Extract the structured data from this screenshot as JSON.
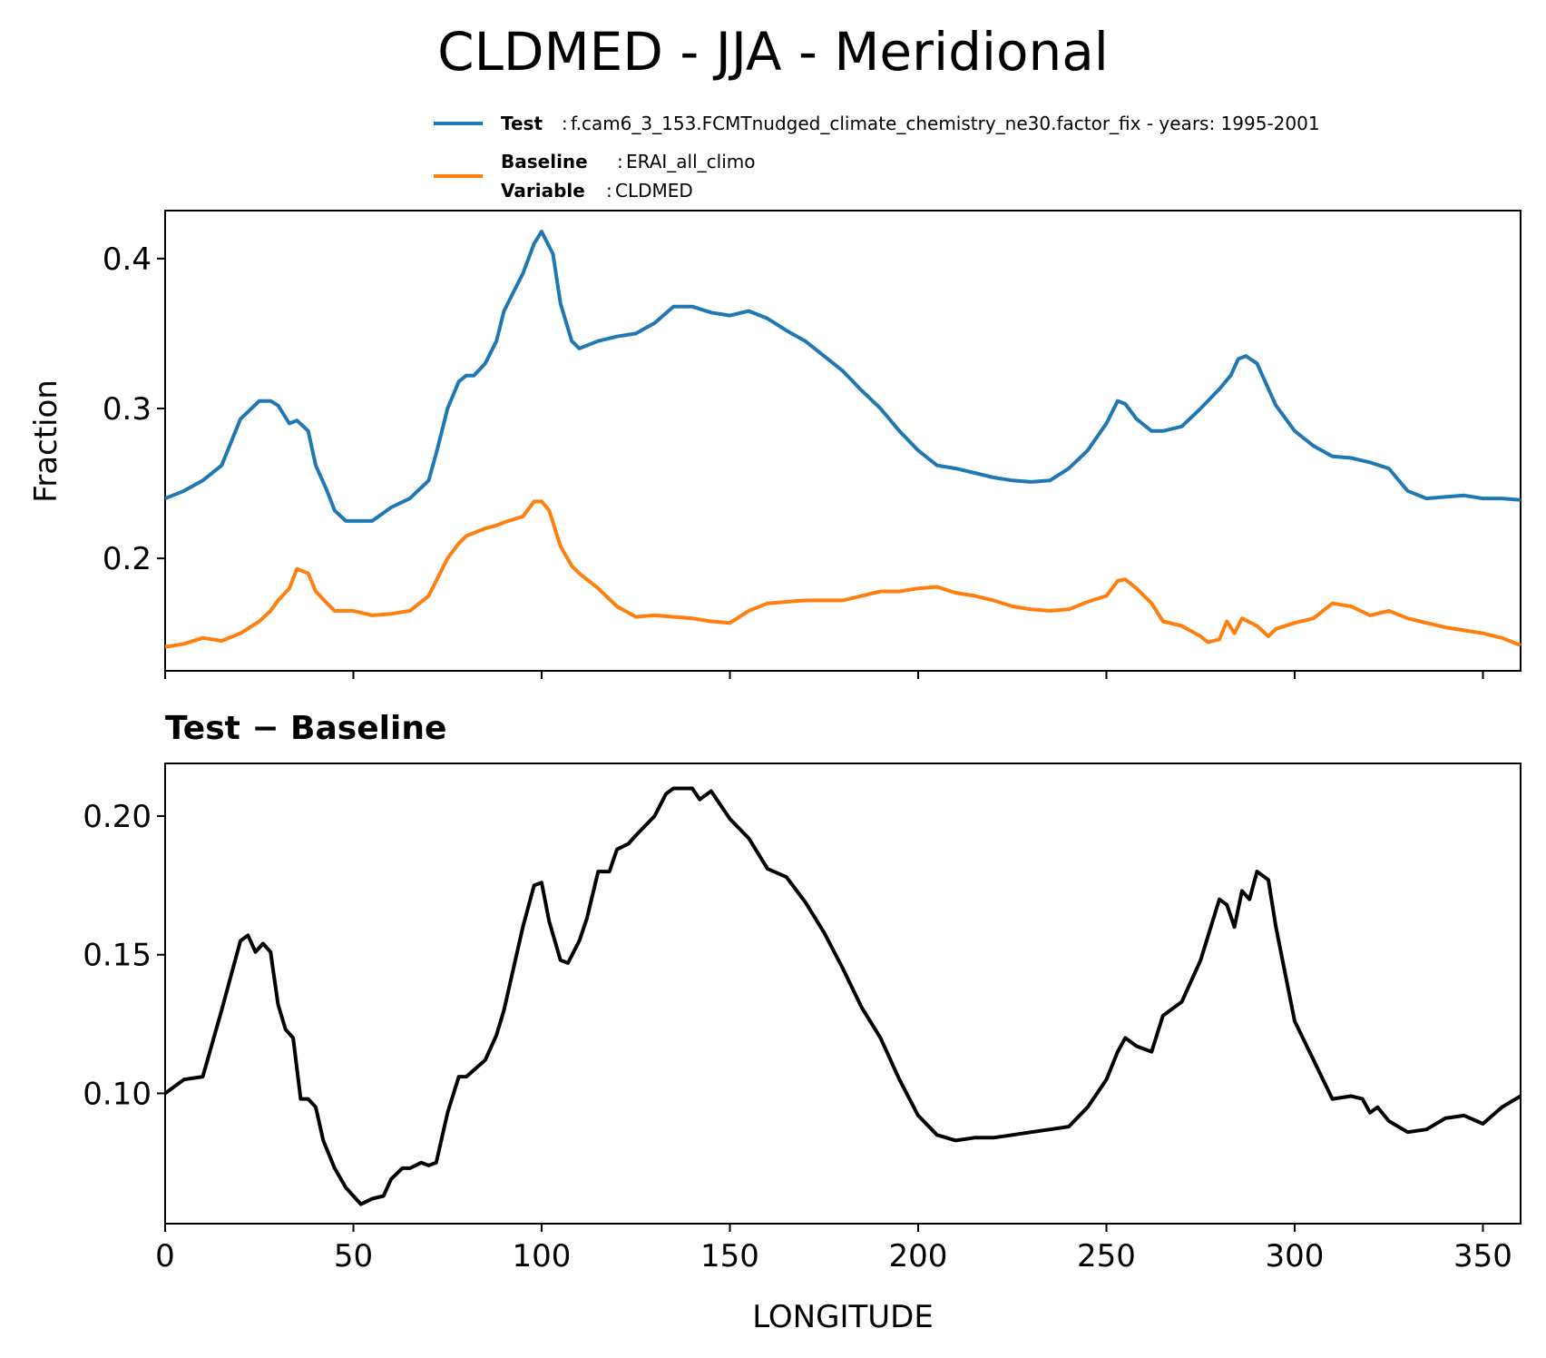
{
  "chart_data": [
    {
      "type": "line",
      "panel": "top",
      "title": "CLDMED - JJA - Meridional",
      "xlabel": "",
      "ylabel": "Fraction",
      "xlim": [
        0,
        360
      ],
      "ylim": [
        0.125,
        0.432
      ],
      "yticks": [
        0.2,
        0.3,
        0.4
      ],
      "ytick_labels": [
        "0.2",
        "0.3",
        "0.4"
      ],
      "xticks": [
        0,
        50,
        100,
        150,
        200,
        250,
        300,
        350
      ],
      "legend": {
        "placement": "top-right",
        "entries": [
          {
            "key": "Test",
            "text": "f.cam6_3_153.FCMTnudged_climate_chemistry_ne30.factor_fix - years: 1995-2001",
            "color": "#1f77b4"
          },
          {
            "key": "Baseline",
            "text": "ERAI_all_climo",
            "color": "#ff7f0e"
          },
          {
            "key": "Variable",
            "text": "CLDMED",
            "color": ""
          }
        ]
      },
      "series": [
        {
          "name": "Test",
          "color": "#1f77b4",
          "x": [
            0,
            5,
            10,
            15,
            20,
            25,
            28,
            30,
            33,
            35,
            38,
            40,
            43,
            45,
            48,
            50,
            55,
            60,
            65,
            70,
            72,
            75,
            78,
            80,
            82,
            85,
            88,
            90,
            92,
            95,
            98,
            100,
            103,
            105,
            108,
            110,
            115,
            120,
            125,
            130,
            135,
            140,
            145,
            150,
            155,
            160,
            165,
            170,
            175,
            180,
            185,
            190,
            195,
            200,
            205,
            210,
            215,
            220,
            225,
            230,
            235,
            240,
            245,
            250,
            253,
            255,
            258,
            262,
            265,
            270,
            275,
            280,
            283,
            285,
            287,
            290,
            295,
            300,
            305,
            310,
            315,
            320,
            325,
            330,
            335,
            340,
            345,
            350,
            355,
            360
          ],
          "values": [
            0.24,
            0.245,
            0.252,
            0.262,
            0.293,
            0.305,
            0.305,
            0.302,
            0.29,
            0.292,
            0.285,
            0.262,
            0.245,
            0.232,
            0.225,
            0.225,
            0.225,
            0.234,
            0.24,
            0.252,
            0.27,
            0.3,
            0.318,
            0.322,
            0.322,
            0.33,
            0.345,
            0.365,
            0.375,
            0.39,
            0.41,
            0.418,
            0.403,
            0.37,
            0.345,
            0.34,
            0.345,
            0.348,
            0.35,
            0.357,
            0.368,
            0.368,
            0.364,
            0.362,
            0.365,
            0.36,
            0.352,
            0.345,
            0.335,
            0.325,
            0.312,
            0.3,
            0.285,
            0.272,
            0.262,
            0.26,
            0.257,
            0.254,
            0.252,
            0.251,
            0.252,
            0.26,
            0.272,
            0.29,
            0.305,
            0.303,
            0.293,
            0.285,
            0.285,
            0.288,
            0.3,
            0.313,
            0.322,
            0.333,
            0.335,
            0.33,
            0.302,
            0.285,
            0.275,
            0.268,
            0.267,
            0.264,
            0.26,
            0.245,
            0.24,
            0.241,
            0.242,
            0.24,
            0.24,
            0.239
          ]
        },
        {
          "name": "Baseline",
          "color": "#ff7f0e",
          "x": [
            0,
            5,
            10,
            15,
            20,
            25,
            28,
            30,
            33,
            35,
            38,
            40,
            43,
            45,
            48,
            50,
            55,
            60,
            65,
            70,
            72,
            75,
            78,
            80,
            82,
            85,
            88,
            90,
            95,
            98,
            100,
            102,
            105,
            108,
            110,
            115,
            120,
            125,
            130,
            135,
            140,
            145,
            150,
            155,
            160,
            165,
            170,
            175,
            180,
            185,
            190,
            195,
            200,
            205,
            210,
            215,
            220,
            225,
            230,
            235,
            240,
            245,
            250,
            253,
            255,
            258,
            262,
            265,
            270,
            275,
            277,
            280,
            282,
            284,
            286,
            290,
            293,
            295,
            300,
            305,
            310,
            315,
            320,
            325,
            330,
            335,
            340,
            345,
            350,
            355,
            360
          ],
          "values": [
            0.141,
            0.143,
            0.147,
            0.145,
            0.15,
            0.158,
            0.165,
            0.172,
            0.18,
            0.193,
            0.19,
            0.178,
            0.17,
            0.165,
            0.165,
            0.165,
            0.162,
            0.163,
            0.165,
            0.175,
            0.185,
            0.2,
            0.21,
            0.215,
            0.217,
            0.22,
            0.222,
            0.224,
            0.228,
            0.238,
            0.238,
            0.232,
            0.208,
            0.195,
            0.19,
            0.18,
            0.168,
            0.161,
            0.162,
            0.161,
            0.16,
            0.158,
            0.157,
            0.165,
            0.17,
            0.171,
            0.172,
            0.172,
            0.172,
            0.175,
            0.178,
            0.178,
            0.18,
            0.181,
            0.177,
            0.175,
            0.172,
            0.168,
            0.166,
            0.165,
            0.166,
            0.171,
            0.175,
            0.185,
            0.186,
            0.18,
            0.17,
            0.158,
            0.155,
            0.148,
            0.144,
            0.146,
            0.158,
            0.15,
            0.16,
            0.155,
            0.148,
            0.153,
            0.157,
            0.16,
            0.17,
            0.168,
            0.162,
            0.165,
            0.16,
            0.157,
            0.154,
            0.152,
            0.15,
            0.147,
            0.142
          ]
        }
      ]
    },
    {
      "type": "line",
      "panel": "bottom",
      "title": "Test − Baseline",
      "xlabel": "LONGITUDE",
      "ylabel": "",
      "xlim": [
        0,
        360
      ],
      "ylim": [
        0.053,
        0.219
      ],
      "yticks": [
        0.1,
        0.15,
        0.2
      ],
      "ytick_labels": [
        "0.10",
        "0.15",
        "0.20"
      ],
      "xticks": [
        0,
        50,
        100,
        150,
        200,
        250,
        300,
        350
      ],
      "xtick_labels": [
        "0",
        "50",
        "100",
        "150",
        "200",
        "250",
        "300",
        "350"
      ],
      "series": [
        {
          "name": "Test − Baseline",
          "color": "#000000",
          "x": [
            0,
            5,
            10,
            15,
            20,
            22,
            24,
            26,
            28,
            30,
            32,
            34,
            36,
            38,
            40,
            42,
            45,
            48,
            50,
            52,
            55,
            58,
            60,
            63,
            65,
            68,
            70,
            72,
            75,
            78,
            80,
            85,
            88,
            90,
            92,
            95,
            98,
            100,
            102,
            105,
            107,
            110,
            112,
            115,
            118,
            120,
            123,
            125,
            130,
            133,
            135,
            138,
            140,
            142,
            145,
            150,
            155,
            160,
            165,
            170,
            175,
            180,
            185,
            190,
            195,
            200,
            205,
            210,
            215,
            220,
            225,
            230,
            235,
            240,
            245,
            250,
            253,
            255,
            258,
            262,
            265,
            270,
            275,
            280,
            282,
            284,
            286,
            288,
            290,
            293,
            295,
            300,
            305,
            310,
            315,
            318,
            320,
            322,
            325,
            330,
            335,
            340,
            345,
            350,
            355,
            360
          ],
          "values": [
            0.1,
            0.105,
            0.106,
            0.13,
            0.155,
            0.157,
            0.151,
            0.154,
            0.151,
            0.132,
            0.123,
            0.12,
            0.098,
            0.098,
            0.095,
            0.083,
            0.073,
            0.066,
            0.063,
            0.06,
            0.062,
            0.063,
            0.069,
            0.073,
            0.073,
            0.075,
            0.074,
            0.075,
            0.093,
            0.106,
            0.106,
            0.112,
            0.121,
            0.13,
            0.142,
            0.16,
            0.175,
            0.176,
            0.162,
            0.148,
            0.147,
            0.155,
            0.163,
            0.18,
            0.18,
            0.188,
            0.19,
            0.193,
            0.2,
            0.208,
            0.21,
            0.21,
            0.21,
            0.206,
            0.209,
            0.199,
            0.192,
            0.181,
            0.178,
            0.169,
            0.158,
            0.145,
            0.131,
            0.12,
            0.105,
            0.092,
            0.085,
            0.083,
            0.084,
            0.084,
            0.085,
            0.086,
            0.087,
            0.088,
            0.095,
            0.105,
            0.115,
            0.12,
            0.117,
            0.115,
            0.128,
            0.133,
            0.148,
            0.17,
            0.168,
            0.16,
            0.173,
            0.17,
            0.18,
            0.177,
            0.16,
            0.126,
            0.112,
            0.098,
            0.099,
            0.098,
            0.093,
            0.095,
            0.09,
            0.086,
            0.087,
            0.091,
            0.092,
            0.089,
            0.095,
            0.099
          ]
        }
      ]
    }
  ]
}
